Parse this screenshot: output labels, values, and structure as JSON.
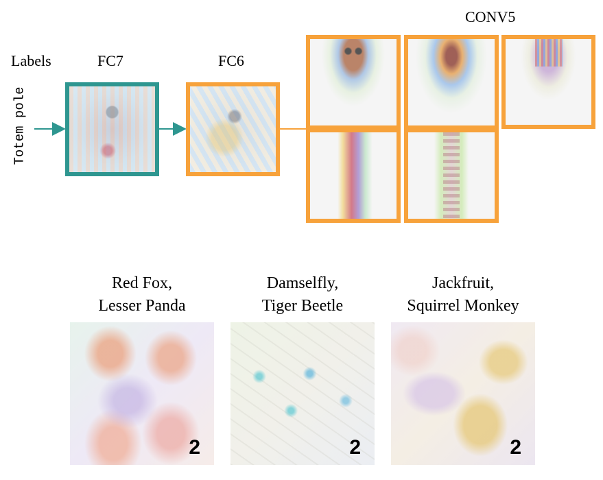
{
  "labels": {
    "labels_heading": "Labels",
    "fc7": "FC7",
    "fc6": "FC6",
    "conv5": "CONV5",
    "input_label": "Totem pole"
  },
  "colors": {
    "fc7_border": "#2e9690",
    "fc6_border": "#f7a23b",
    "conv5_border": "#f7a23b",
    "arrow": "#2e9690"
  },
  "examples": [
    {
      "caption_line1": "Red Fox,",
      "caption_line2": "Lesser Panda",
      "count": "2"
    },
    {
      "caption_line1": "Damselfly,",
      "caption_line2": "Tiger Beetle",
      "count": "2"
    },
    {
      "caption_line1": "Jackfruit,",
      "caption_line2": "Squirrel Monkey",
      "count": "2"
    }
  ]
}
